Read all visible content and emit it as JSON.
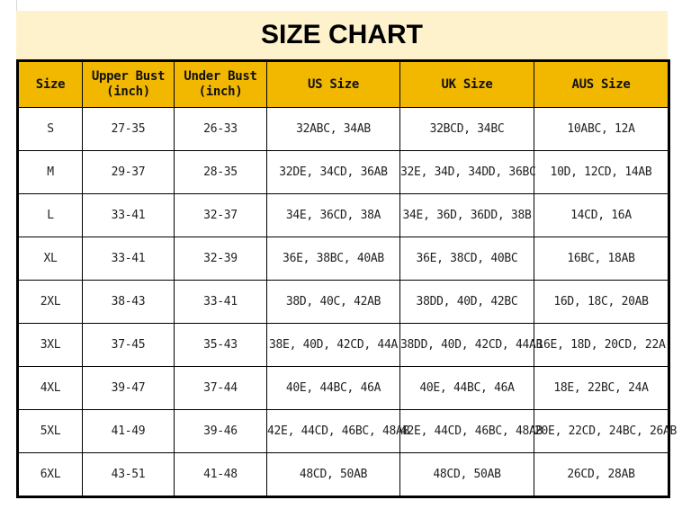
{
  "title": "SIZE CHART",
  "colors": {
    "title_bg": "#fef2cc",
    "header_bg": "#f2b800"
  },
  "headers": [
    "Size",
    "Upper Bust\n(inch)",
    "Under Bust\n(inch)",
    "US Size",
    "UK Size",
    "AUS Size"
  ],
  "rows": [
    [
      "S",
      "27-35",
      "26-33",
      "32ABC, 34AB",
      "32BCD, 34BC",
      "10ABC, 12A"
    ],
    [
      "M",
      "29-37",
      "28-35",
      "32DE, 34CD, 36AB",
      "32E, 34D, 34DD, 36BC",
      "10D, 12CD, 14AB"
    ],
    [
      "L",
      "33-41",
      "32-37",
      "34E, 36CD, 38A",
      "34E, 36D, 36DD, 38B",
      "14CD, 16A"
    ],
    [
      "XL",
      "33-41",
      "32-39",
      "36E, 38BC, 40AB",
      "36E, 38CD, 40BC",
      "16BC, 18AB"
    ],
    [
      "2XL",
      "38-43",
      "33-41",
      "38D, 40C, 42AB",
      "38DD, 40D, 42BC",
      "16D, 18C, 20AB"
    ],
    [
      "3XL",
      "37-45",
      "35-43",
      "38E, 40D, 42CD, 44A",
      "38DD, 40D, 42CD, 44AB",
      "16E, 18D, 20CD, 22A"
    ],
    [
      "4XL",
      "39-47",
      "37-44",
      "40E, 44BC, 46A",
      "40E, 44BC, 46A",
      "18E, 22BC, 24A"
    ],
    [
      "5XL",
      "41-49",
      "39-46",
      "42E, 44CD, 46BC, 48AB",
      "42E, 44CD, 46BC, 48AB",
      "20E, 22CD, 24BC, 26AB"
    ],
    [
      "6XL",
      "43-51",
      "41-48",
      "48CD, 50AB",
      "48CD, 50AB",
      "26CD, 28AB"
    ]
  ]
}
